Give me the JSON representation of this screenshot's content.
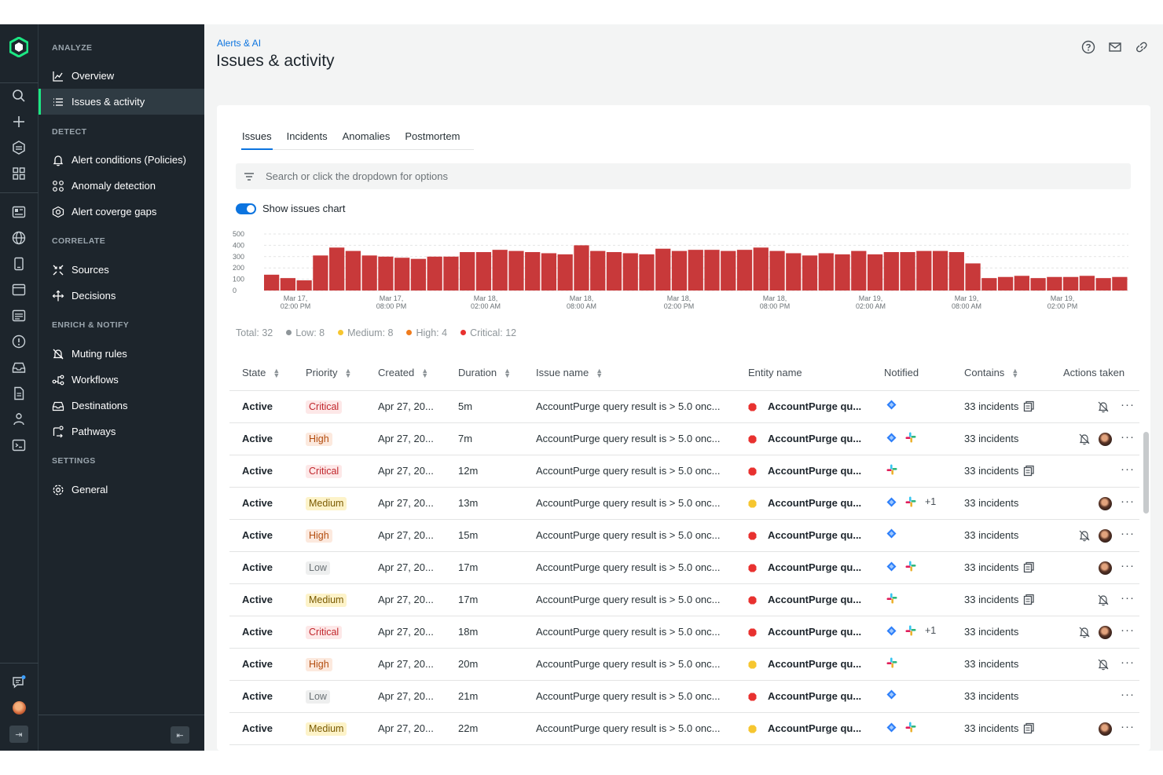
{
  "sidebar": {
    "sections": [
      {
        "label": "ANALYZE",
        "items": [
          {
            "label": "Overview",
            "icon": "chart-line-icon"
          },
          {
            "label": "Issues & activity",
            "icon": "list-icon",
            "active": true
          }
        ]
      },
      {
        "label": "DETECT",
        "items": [
          {
            "label": "Alert conditions (Policies)",
            "icon": "bell-icon"
          },
          {
            "label": "Anomaly detection",
            "icon": "anomaly-icon"
          },
          {
            "label": "Alert coverge gaps",
            "icon": "coverage-gap-icon"
          }
        ]
      },
      {
        "label": "CORRELATE",
        "items": [
          {
            "label": "Sources",
            "icon": "sources-icon"
          },
          {
            "label": "Decisions",
            "icon": "decisions-icon"
          }
        ]
      },
      {
        "label": "ENRICH & NOTIFY",
        "items": [
          {
            "label": "Muting rules",
            "icon": "bell-off-icon"
          },
          {
            "label": "Workflows",
            "icon": "workflow-icon"
          },
          {
            "label": "Destinations",
            "icon": "inbox-icon"
          },
          {
            "label": "Pathways",
            "icon": "pathways-icon"
          }
        ]
      },
      {
        "label": "SETTINGS",
        "items": [
          {
            "label": "General",
            "icon": "gear-icon"
          }
        ]
      }
    ]
  },
  "header": {
    "breadcrumb": "Alerts & AI",
    "title": "Issues & activity"
  },
  "tabs": [
    "Issues",
    "Incidents",
    "Anomalies",
    "Postmortem"
  ],
  "search": {
    "placeholder": "Search or click the dropdown for options"
  },
  "toggle": {
    "label": "Show issues chart",
    "on": true
  },
  "summary": {
    "total": "Total: 32",
    "low": "Low: 8",
    "medium": "Medium: 8",
    "high": "High: 4",
    "critical": "Critical: 12"
  },
  "colors": {
    "accent": "#0c74df",
    "bar": "#c8393a",
    "critical": "#e8312f",
    "medium": "#f6c62f",
    "low": "#8e9599",
    "high": "#f07c1d"
  },
  "chart_data": {
    "type": "bar",
    "y_ticks": [
      "500",
      "400",
      "300",
      "200",
      "100",
      "0"
    ],
    "ylim": [
      0,
      500
    ],
    "x_ticks": [
      [
        "Mar 17,",
        "02:00 PM"
      ],
      [
        "Mar 17,",
        "08:00 PM"
      ],
      [
        "Mar 18,",
        "02:00 AM"
      ],
      [
        "Mar 18,",
        "08:00 AM"
      ],
      [
        "Mar 18,",
        "02:00 PM"
      ],
      [
        "Mar 18,",
        "08:00 PM"
      ],
      [
        "Mar 19,",
        "02:00 AM"
      ],
      [
        "Mar 19,",
        "08:00 AM"
      ],
      [
        "Mar 19,",
        "02:00 PM"
      ]
    ],
    "values": [
      140,
      110,
      90,
      310,
      380,
      350,
      310,
      300,
      290,
      280,
      300,
      300,
      340,
      340,
      360,
      350,
      340,
      330,
      320,
      400,
      350,
      340,
      330,
      320,
      370,
      350,
      360,
      360,
      350,
      360,
      380,
      350,
      330,
      310,
      330,
      320,
      350,
      320,
      340,
      340,
      350,
      350,
      340,
      240,
      110,
      120,
      130,
      110,
      120,
      120,
      130,
      110,
      120
    ]
  },
  "table": {
    "columns": [
      "State",
      "Priority",
      "Created",
      "Duration",
      "Issue name",
      "Entity name",
      "Notified",
      "Contains",
      "Actions taken"
    ],
    "rows": [
      {
        "state": "Active",
        "priority": "Critical",
        "created": "Apr 27, 20...",
        "duration": "5m",
        "issue": "AccountPurge query result is > 5.0 onc...",
        "entity": "AccountPurge qu...",
        "entity_color": "critical",
        "notified": [
          "diamond"
        ],
        "extra": "",
        "contains": "33 incidents",
        "stack": true,
        "mute": true,
        "avatar": false
      },
      {
        "state": "Active",
        "priority": "High",
        "created": "Apr 27, 20...",
        "duration": "7m",
        "issue": "AccountPurge query result is > 5.0 onc...",
        "entity": "AccountPurge qu...",
        "entity_color": "critical",
        "notified": [
          "diamond",
          "slack"
        ],
        "extra": "",
        "contains": "33 incidents",
        "stack": false,
        "mute": true,
        "avatar": true
      },
      {
        "state": "Active",
        "priority": "Critical",
        "created": "Apr 27, 20...",
        "duration": "12m",
        "issue": "AccountPurge query result is > 5.0 onc...",
        "entity": "AccountPurge qu...",
        "entity_color": "critical",
        "notified": [
          "slack"
        ],
        "extra": "",
        "contains": "33 incidents",
        "stack": true,
        "mute": false,
        "avatar": false
      },
      {
        "state": "Active",
        "priority": "Medium",
        "created": "Apr 27, 20...",
        "duration": "13m",
        "issue": "AccountPurge query result is > 5.0 onc...",
        "entity": "AccountPurge qu...",
        "entity_color": "medium",
        "notified": [
          "diamond",
          "slack"
        ],
        "extra": "+1",
        "contains": "33 incidents",
        "stack": false,
        "mute": false,
        "avatar": true
      },
      {
        "state": "Active",
        "priority": "High",
        "created": "Apr 27, 20...",
        "duration": "15m",
        "issue": "AccountPurge query result is > 5.0 onc...",
        "entity": "AccountPurge qu...",
        "entity_color": "critical",
        "notified": [
          "diamond"
        ],
        "extra": "",
        "contains": "33 incidents",
        "stack": false,
        "mute": true,
        "avatar": true
      },
      {
        "state": "Active",
        "priority": "Low",
        "created": "Apr 27, 20...",
        "duration": "17m",
        "issue": "AccountPurge query result is > 5.0 onc...",
        "entity": "AccountPurge qu...",
        "entity_color": "critical",
        "notified": [
          "diamond",
          "slack"
        ],
        "extra": "",
        "contains": "33 incidents",
        "stack": true,
        "mute": false,
        "avatar": true
      },
      {
        "state": "Active",
        "priority": "Medium",
        "created": "Apr 27, 20...",
        "duration": "17m",
        "issue": "AccountPurge query result is > 5.0 onc...",
        "entity": "AccountPurge qu...",
        "entity_color": "critical",
        "notified": [
          "slack"
        ],
        "extra": "",
        "contains": "33 incidents",
        "stack": true,
        "mute": true,
        "avatar": false
      },
      {
        "state": "Active",
        "priority": "Critical",
        "created": "Apr 27, 20...",
        "duration": "18m",
        "issue": "AccountPurge query result is > 5.0 onc...",
        "entity": "AccountPurge qu...",
        "entity_color": "critical",
        "notified": [
          "diamond",
          "slack"
        ],
        "extra": "+1",
        "contains": "33 incidents",
        "stack": false,
        "mute": true,
        "avatar": true
      },
      {
        "state": "Active",
        "priority": "High",
        "created": "Apr 27, 20...",
        "duration": "20m",
        "issue": "AccountPurge query result is > 5.0 onc...",
        "entity": "AccountPurge qu...",
        "entity_color": "medium",
        "notified": [
          "slack"
        ],
        "extra": "",
        "contains": "33 incidents",
        "stack": false,
        "mute": true,
        "avatar": false
      },
      {
        "state": "Active",
        "priority": "Low",
        "created": "Apr 27, 20...",
        "duration": "21m",
        "issue": "AccountPurge query result is > 5.0 onc...",
        "entity": "AccountPurge qu...",
        "entity_color": "critical",
        "notified": [
          "diamond"
        ],
        "extra": "",
        "contains": "33 incidents",
        "stack": false,
        "mute": false,
        "avatar": false
      },
      {
        "state": "Active",
        "priority": "Medium",
        "created": "Apr 27, 20...",
        "duration": "22m",
        "issue": "AccountPurge query result is > 5.0 onc...",
        "entity": "AccountPurge qu...",
        "entity_color": "medium",
        "notified": [
          "diamond",
          "slack"
        ],
        "extra": "",
        "contains": "33 incidents",
        "stack": true,
        "mute": false,
        "avatar": true
      }
    ]
  }
}
